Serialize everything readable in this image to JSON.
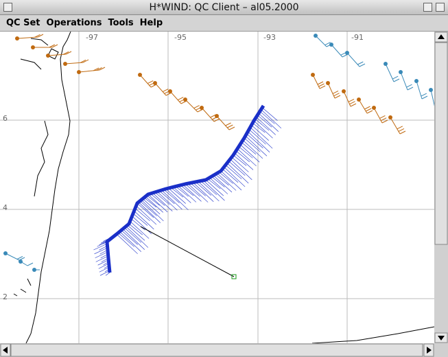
{
  "window": {
    "title": "H*WIND: QC Client – al05.2000"
  },
  "menu": [
    "QC Set",
    "Operations",
    "Tools",
    "Help"
  ],
  "map": {
    "lon_labels": [
      "-97",
      "-95",
      "-93",
      "-91"
    ],
    "lat_labels": [
      "6",
      "4",
      "2"
    ]
  }
}
